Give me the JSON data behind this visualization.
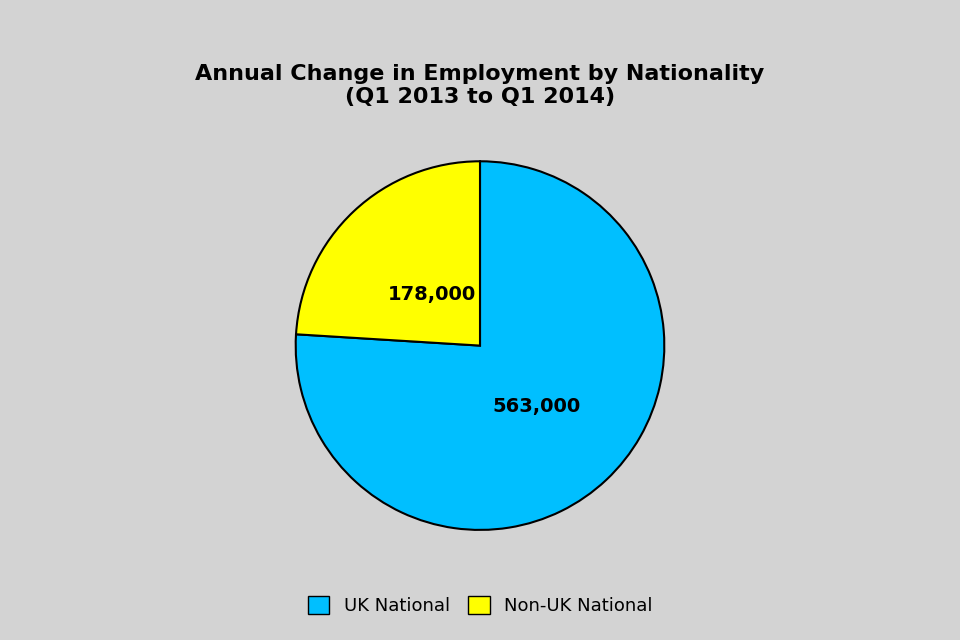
{
  "title": "Annual Change in Employment by Nationality\n(Q1 2013 to Q1 2014)",
  "title_fontsize": 16,
  "title_fontweight": "bold",
  "values": [
    563000,
    178000
  ],
  "labels": [
    "UK National",
    "Non-UK National"
  ],
  "colors": [
    "#00BFFF",
    "#FFFF00"
  ],
  "label_texts": [
    "563,000",
    "178,000"
  ],
  "background_color": "#D3D3D3",
  "text_fontsize": 14,
  "legend_fontsize": 13,
  "startangle": 90,
  "counterclock": false
}
